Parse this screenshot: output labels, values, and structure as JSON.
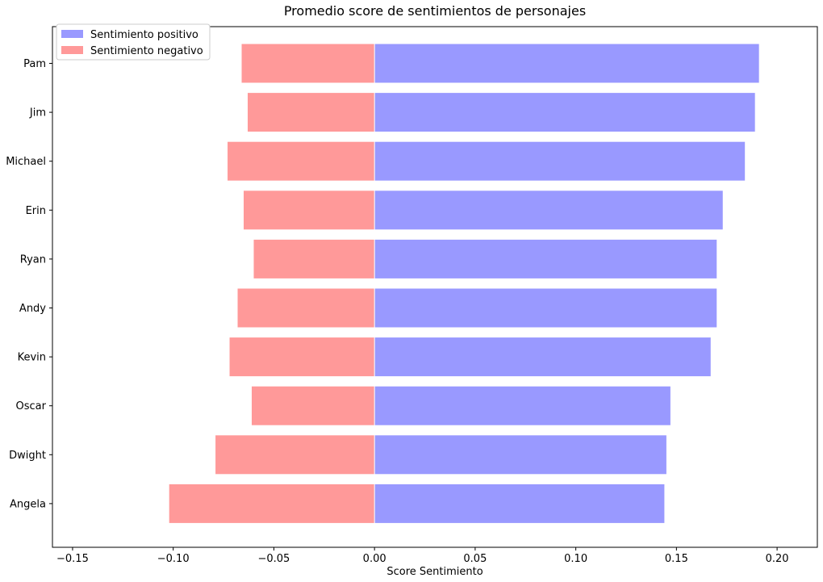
{
  "chart_data": {
    "type": "bar",
    "orientation": "horizontal",
    "title": "Promedio score de sentimientos de personajes",
    "xlabel": "Score Sentimiento",
    "ylabel": "",
    "xlim": [
      -0.16,
      0.22
    ],
    "xticks": [
      -0.15,
      -0.1,
      -0.05,
      0.0,
      0.05,
      0.1,
      0.15,
      0.2
    ],
    "xtick_labels": [
      "−0.15",
      "−0.10",
      "−0.05",
      "0.00",
      "0.05",
      "0.10",
      "0.15",
      "0.20"
    ],
    "categories": [
      "Pam",
      "Jim",
      "Michael",
      "Erin",
      "Ryan",
      "Andy",
      "Kevin",
      "Oscar",
      "Dwight",
      "Angela"
    ],
    "series": [
      {
        "name": "Sentimiento positivo",
        "color": "#9999ff",
        "values": [
          0.191,
          0.189,
          0.184,
          0.173,
          0.17,
          0.17,
          0.167,
          0.147,
          0.145,
          0.144
        ]
      },
      {
        "name": "Sentimiento negativo",
        "color": "#ff9999",
        "values": [
          -0.066,
          -0.063,
          -0.073,
          -0.065,
          -0.06,
          -0.068,
          -0.072,
          -0.061,
          -0.079,
          -0.102
        ]
      }
    ],
    "grid": false,
    "legend": "top-left"
  }
}
